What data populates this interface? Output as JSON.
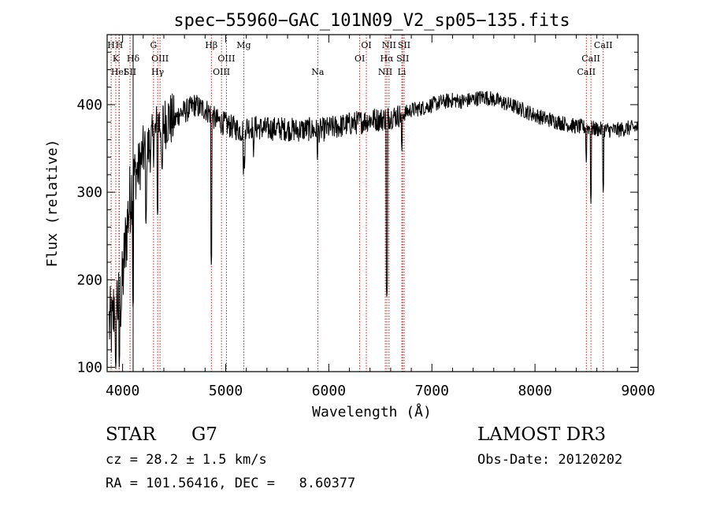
{
  "chart_data": {
    "type": "line",
    "title": "spec−55960−GAC_101N09_V2_sp05−135.fits",
    "xlabel": "Wavelength (Å)",
    "ylabel": "Flux (relative)",
    "xlim": [
      3850,
      9000
    ],
    "ylim": [
      95,
      480
    ],
    "xticks": [
      4000,
      5000,
      6000,
      7000,
      8000,
      9000
    ],
    "yticks": [
      100,
      200,
      300,
      400
    ],
    "line_color": "#000000",
    "marker_color": "#cc0000",
    "anchors": [
      [
        3870,
        150
      ],
      [
        3900,
        145
      ],
      [
        3930,
        190
      ],
      [
        3960,
        170
      ],
      [
        3990,
        180
      ],
      [
        4020,
        230
      ],
      [
        4050,
        270
      ],
      [
        4080,
        300
      ],
      [
        4110,
        320
      ],
      [
        4150,
        325
      ],
      [
        4200,
        345
      ],
      [
        4250,
        350
      ],
      [
        4300,
        360
      ],
      [
        4350,
        380
      ],
      [
        4400,
        378
      ],
      [
        4450,
        385
      ],
      [
        4500,
        380
      ],
      [
        4550,
        390
      ],
      [
        4600,
        392
      ],
      [
        4650,
        395
      ],
      [
        4700,
        400
      ],
      [
        4750,
        396
      ],
      [
        4800,
        395
      ],
      [
        4850,
        390
      ],
      [
        4900,
        383
      ],
      [
        4950,
        380
      ],
      [
        5000,
        378
      ],
      [
        5050,
        375
      ],
      [
        5100,
        373
      ],
      [
        5150,
        370
      ],
      [
        5200,
        375
      ],
      [
        5300,
        374
      ],
      [
        5400,
        372
      ],
      [
        5500,
        373
      ],
      [
        5600,
        372
      ],
      [
        5700,
        371
      ],
      [
        5800,
        372
      ],
      [
        5900,
        370
      ],
      [
        6000,
        373
      ],
      [
        6100,
        375
      ],
      [
        6200,
        378
      ],
      [
        6300,
        380
      ],
      [
        6400,
        383
      ],
      [
        6500,
        383
      ],
      [
        6600,
        386
      ],
      [
        6700,
        388
      ],
      [
        6800,
        394
      ],
      [
        6900,
        396
      ],
      [
        7000,
        400
      ],
      [
        7100,
        403
      ],
      [
        7200,
        405
      ],
      [
        7300,
        404
      ],
      [
        7400,
        406
      ],
      [
        7500,
        409
      ],
      [
        7600,
        406
      ],
      [
        7700,
        402
      ],
      [
        7800,
        398
      ],
      [
        7900,
        393
      ],
      [
        8000,
        388
      ],
      [
        8100,
        384
      ],
      [
        8200,
        381
      ],
      [
        8300,
        378
      ],
      [
        8400,
        375
      ],
      [
        8500,
        374
      ],
      [
        8600,
        372
      ],
      [
        8700,
        371
      ],
      [
        8800,
        371
      ],
      [
        8900,
        373
      ],
      [
        9000,
        374
      ]
    ],
    "absorption": [
      [
        3934,
        95
      ],
      [
        3968,
        100
      ],
      [
        4102,
        165
      ],
      [
        4226,
        260
      ],
      [
        4340,
        270
      ],
      [
        4383,
        320
      ],
      [
        4861,
        215
      ],
      [
        5172,
        320
      ],
      [
        5183,
        325
      ],
      [
        5270,
        340
      ],
      [
        5890,
        335
      ],
      [
        6563,
        175
      ],
      [
        6708,
        345
      ],
      [
        8498,
        330
      ],
      [
        8542,
        285
      ],
      [
        8662,
        298
      ]
    ],
    "lines": [
      {
        "label": "H",
        "wave": 3889,
        "row": 0
      },
      {
        "label": "K",
        "wave": 3934,
        "row": 1
      },
      {
        "label": "HeI",
        "wave": 3965,
        "row": 2
      },
      {
        "label": "H",
        "wave": 3968,
        "row": 0
      },
      {
        "label": "SII",
        "wave": 4072,
        "row": 2
      },
      {
        "label": "Hδ",
        "wave": 4102,
        "row": 1
      },
      {
        "label": "G",
        "wave": 4300,
        "row": 0
      },
      {
        "label": "OIII",
        "wave": 4363,
        "row": 1
      },
      {
        "label": "Hγ",
        "wave": 4340,
        "row": 2
      },
      {
        "label": "Hβ",
        "wave": 4861,
        "row": 0
      },
      {
        "label": "OIII",
        "wave": 5007,
        "row": 1
      },
      {
        "label": "OIII",
        "wave": 4959,
        "row": 2
      },
      {
        "label": "Mg",
        "wave": 5175,
        "row": 0
      },
      {
        "label": "Na",
        "wave": 5893,
        "row": 2
      },
      {
        "label": "OI",
        "wave": 6364,
        "row": 0
      },
      {
        "label": "OI",
        "wave": 6300,
        "row": 1
      },
      {
        "label": "NII",
        "wave": 6584,
        "row": 0
      },
      {
        "label": "Hα",
        "wave": 6563,
        "row": 1
      },
      {
        "label": "NII",
        "wave": 6548,
        "row": 2
      },
      {
        "label": "SII",
        "wave": 6731,
        "row": 0
      },
      {
        "label": "SII",
        "wave": 6717,
        "row": 1
      },
      {
        "label": "Li",
        "wave": 6708,
        "row": 2
      },
      {
        "label": "CaII",
        "wave": 8662,
        "row": 0
      },
      {
        "label": "CaII",
        "wave": 8542,
        "row": 1
      },
      {
        "label": "CaII",
        "wave": 8498,
        "row": 2
      }
    ],
    "black_vline": 4102
  },
  "info": {
    "class": "STAR",
    "subclass": "G7",
    "cz": "cz = 28.2 ± 1.5 km/s",
    "radec": "RA = 101.56416, DEC =   8.60377",
    "survey": "LAMOST DR3",
    "obsdate": "Obs-Date: 20120202"
  }
}
